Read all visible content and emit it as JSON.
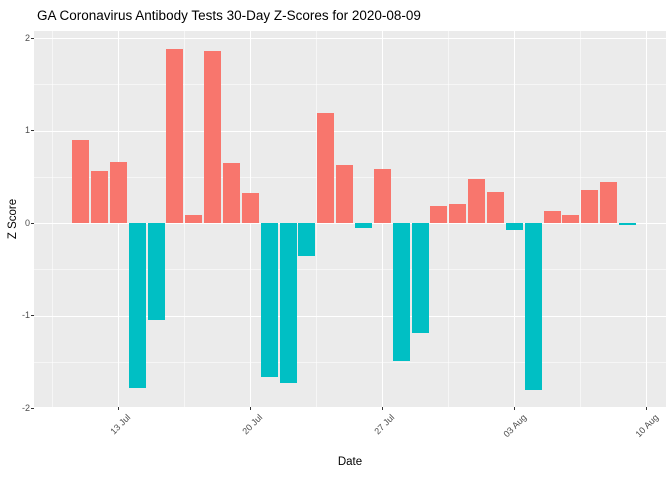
{
  "chart_data": {
    "type": "bar",
    "title": "GA Coronavirus Antibody Tests 30-Day Z-Scores for 2020-08-09",
    "xlabel": "Date",
    "ylabel": "Z Score",
    "x": [
      "2020-07-11",
      "2020-07-12",
      "2020-07-13",
      "2020-07-14",
      "2020-07-15",
      "2020-07-16",
      "2020-07-17",
      "2020-07-18",
      "2020-07-19",
      "2020-07-20",
      "2020-07-21",
      "2020-07-22",
      "2020-07-23",
      "2020-07-24",
      "2020-07-25",
      "2020-07-26",
      "2020-07-27",
      "2020-07-28",
      "2020-07-29",
      "2020-07-30",
      "2020-07-31",
      "2020-08-01",
      "2020-08-02",
      "2020-08-03",
      "2020-08-04",
      "2020-08-05",
      "2020-08-06",
      "2020-08-07",
      "2020-08-08",
      "2020-08-09"
    ],
    "values": [
      0.9,
      0.56,
      0.66,
      -1.78,
      -1.05,
      1.88,
      0.09,
      1.86,
      0.65,
      0.32,
      -1.66,
      -1.73,
      -0.36,
      1.19,
      0.63,
      -0.05,
      0.58,
      -1.49,
      -1.19,
      0.18,
      0.21,
      0.48,
      0.33,
      -0.08,
      -1.8,
      0.13,
      0.09,
      0.36,
      0.44,
      -0.02
    ],
    "x_ticks": [
      {
        "date": "2020-07-13",
        "label": "13 Jul"
      },
      {
        "date": "2020-07-20",
        "label": "20 Jul"
      },
      {
        "date": "2020-07-27",
        "label": "27 Jul"
      },
      {
        "date": "2020-08-03",
        "label": "03 Aug"
      },
      {
        "date": "2020-08-10",
        "label": "10 Aug"
      }
    ],
    "y_ticks": [
      {
        "value": 2,
        "label": "2"
      },
      {
        "value": 1,
        "label": "1"
      },
      {
        "value": 0,
        "label": "0"
      },
      {
        "value": -1,
        "label": "-1"
      },
      {
        "value": -2,
        "label": "-2"
      }
    ],
    "y_minor": [
      1.5,
      0.5,
      -0.5,
      -1.5
    ],
    "ylim": [
      -2.0,
      2.09
    ],
    "grid": true,
    "legend": false,
    "colors": {
      "positive_bar": "#F8766D",
      "negative_bar": "#00BFC4",
      "panel_bg": "#EBEBEB",
      "gridline": "#FFFFFF",
      "tick_label": "#4D4D4D",
      "text": "#000000"
    }
  }
}
